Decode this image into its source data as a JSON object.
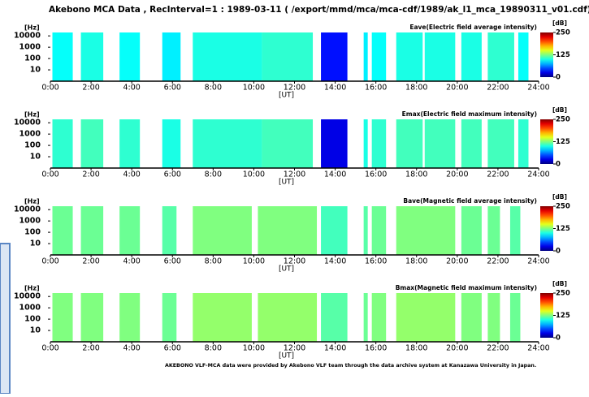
{
  "title": "Akebono   MCA Data   , RecInterval=1 : 1989-03-11 ( /export/mmd/mca/mca-cdf/1989/ak_l1_mca_19890311_v01.cdf)",
  "footer": "AKEBONO VLF-MCA data were provided by Akebono VLF team through the data archive system at Kanazawa University in Japan.",
  "chart_data": [
    {
      "type": "spectrogram",
      "title": "Eave(Electric field average intensity)",
      "y_label": "[Hz]",
      "x_label": "[UT]",
      "colorbar_label": "[dB]",
      "xlim": [
        0,
        24
      ],
      "xticks": [
        {
          "value": 0,
          "label": "0:00"
        },
        {
          "value": 2,
          "label": "2:00"
        },
        {
          "value": 4,
          "label": "4:00"
        },
        {
          "value": 6,
          "label": "6:00"
        },
        {
          "value": 8,
          "label": "8:00"
        },
        {
          "value": 10,
          "label": "10:00"
        },
        {
          "value": 12,
          "label": "12:00"
        },
        {
          "value": 14,
          "label": "14:00"
        },
        {
          "value": 16,
          "label": "16:00"
        },
        {
          "value": 18,
          "label": "18:00"
        },
        {
          "value": 20,
          "label": "20:00"
        },
        {
          "value": 22,
          "label": "22:00"
        },
        {
          "value": 24,
          "label": "24:00"
        }
      ],
      "ylim": [
        1,
        20000
      ],
      "yticks": [
        10,
        100,
        1000,
        10000
      ],
      "log_y": true,
      "clim": [
        0,
        250
      ],
      "cticks": [
        0,
        125,
        250
      ],
      "starts": [
        0.1,
        1.5,
        3.4,
        5.5,
        7.0,
        10.4,
        13.3,
        15.4,
        15.8,
        17.0,
        18.4,
        20.2,
        21.5,
        23.0
      ],
      "ends": [
        1.1,
        2.6,
        4.4,
        6.4,
        10.4,
        12.9,
        14.6,
        15.6,
        16.5,
        18.3,
        19.9,
        21.2,
        22.8,
        23.5
      ],
      "values": [
        95,
        100,
        95,
        90,
        100,
        105,
        35,
        90,
        95,
        100,
        100,
        100,
        105,
        95
      ]
    },
    {
      "type": "spectrogram",
      "title": "Emax(Electric field maximum intensity)",
      "y_label": "[Hz]",
      "x_label": "[UT]",
      "colorbar_label": "[dB]",
      "xlim": [
        0,
        24
      ],
      "xticks": [
        {
          "value": 0,
          "label": "0:00"
        },
        {
          "value": 2,
          "label": "2:00"
        },
        {
          "value": 4,
          "label": "4:00"
        },
        {
          "value": 6,
          "label": "6:00"
        },
        {
          "value": 8,
          "label": "8:00"
        },
        {
          "value": 10,
          "label": "10:00"
        },
        {
          "value": 12,
          "label": "12:00"
        },
        {
          "value": 14,
          "label": "14:00"
        },
        {
          "value": 16,
          "label": "16:00"
        },
        {
          "value": 18,
          "label": "18:00"
        },
        {
          "value": 20,
          "label": "20:00"
        },
        {
          "value": 22,
          "label": "22:00"
        },
        {
          "value": 24,
          "label": "24:00"
        }
      ],
      "ylim": [
        1,
        20000
      ],
      "yticks": [
        10,
        100,
        1000,
        10000
      ],
      "log_y": true,
      "clim": [
        0,
        250
      ],
      "cticks": [
        0,
        125,
        250
      ],
      "starts": [
        0.1,
        1.5,
        3.4,
        5.5,
        7.0,
        10.4,
        13.3,
        15.4,
        15.8,
        17.0,
        18.4,
        20.2,
        21.5,
        23.0
      ],
      "ends": [
        1.1,
        2.6,
        4.4,
        6.4,
        10.4,
        12.9,
        14.6,
        15.6,
        16.5,
        18.3,
        19.9,
        21.2,
        22.8,
        23.5
      ],
      "values": [
        105,
        110,
        105,
        100,
        105,
        110,
        25,
        100,
        105,
        110,
        110,
        110,
        110,
        105
      ]
    },
    {
      "type": "spectrogram",
      "title": "Bave(Magnetic field average intensity)",
      "y_label": "[Hz]",
      "x_label": "[UT]",
      "colorbar_label": "[dB]",
      "xlim": [
        0,
        24
      ],
      "xticks": [
        {
          "value": 0,
          "label": "0:00"
        },
        {
          "value": 2,
          "label": "2:00"
        },
        {
          "value": 4,
          "label": "4:00"
        },
        {
          "value": 6,
          "label": "6:00"
        },
        {
          "value": 8,
          "label": "8:00"
        },
        {
          "value": 10,
          "label": "10:00"
        },
        {
          "value": 12,
          "label": "12:00"
        },
        {
          "value": 14,
          "label": "14:00"
        },
        {
          "value": 16,
          "label": "16:00"
        },
        {
          "value": 18,
          "label": "18:00"
        },
        {
          "value": 20,
          "label": "20:00"
        },
        {
          "value": 22,
          "label": "22:00"
        },
        {
          "value": 24,
          "label": "24:00"
        }
      ],
      "ylim": [
        1,
        20000
      ],
      "yticks": [
        10,
        100,
        1000,
        10000
      ],
      "log_y": true,
      "clim": [
        0,
        250
      ],
      "cticks": [
        0,
        125,
        250
      ],
      "starts": [
        0.1,
        1.5,
        3.4,
        5.5,
        7.0,
        10.2,
        13.3,
        15.4,
        15.8,
        17.0,
        20.2,
        21.5,
        22.6
      ],
      "ends": [
        1.1,
        2.6,
        4.4,
        6.2,
        9.9,
        13.1,
        14.6,
        15.6,
        16.5,
        19.9,
        21.2,
        22.1,
        23.1
      ],
      "values": [
        120,
        120,
        120,
        115,
        125,
        125,
        110,
        115,
        120,
        125,
        120,
        120,
        115
      ]
    },
    {
      "type": "spectrogram",
      "title": "Bmax(Magnetic field maximum intensity)",
      "y_label": "[Hz]",
      "x_label": "[UT]",
      "colorbar_label": "[dB]",
      "xlim": [
        0,
        24
      ],
      "xticks": [
        {
          "value": 0,
          "label": "0:00"
        },
        {
          "value": 2,
          "label": "2:00"
        },
        {
          "value": 4,
          "label": "4:00"
        },
        {
          "value": 6,
          "label": "6:00"
        },
        {
          "value": 8,
          "label": "8:00"
        },
        {
          "value": 10,
          "label": "10:00"
        },
        {
          "value": 12,
          "label": "12:00"
        },
        {
          "value": 14,
          "label": "14:00"
        },
        {
          "value": 16,
          "label": "16:00"
        },
        {
          "value": 18,
          "label": "18:00"
        },
        {
          "value": 20,
          "label": "20:00"
        },
        {
          "value": 22,
          "label": "22:00"
        },
        {
          "value": 24,
          "label": "24:00"
        }
      ],
      "ylim": [
        1,
        20000
      ],
      "yticks": [
        10,
        100,
        1000,
        10000
      ],
      "log_y": true,
      "clim": [
        0,
        250
      ],
      "cticks": [
        0,
        125,
        250
      ],
      "starts": [
        0.1,
        1.5,
        3.4,
        5.5,
        7.0,
        10.2,
        13.3,
        15.4,
        15.8,
        17.0,
        20.2,
        21.5,
        22.6
      ],
      "ends": [
        1.1,
        2.6,
        4.4,
        6.2,
        9.9,
        13.1,
        14.6,
        15.6,
        16.5,
        19.9,
        21.2,
        22.1,
        23.1
      ],
      "values": [
        125,
        125,
        125,
        120,
        130,
        130,
        115,
        120,
        125,
        130,
        125,
        125,
        120
      ]
    }
  ]
}
